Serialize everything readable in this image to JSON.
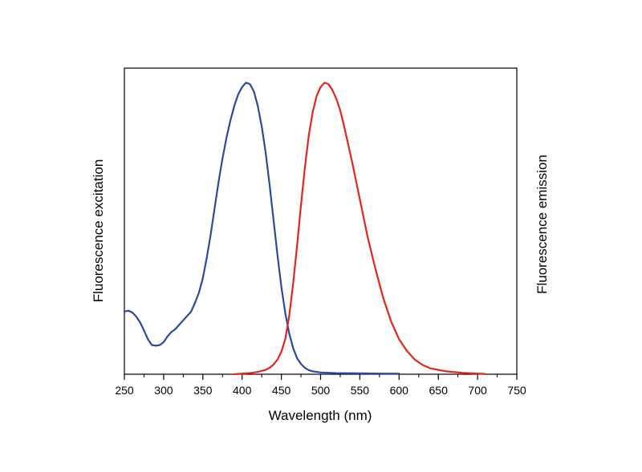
{
  "chart_data": {
    "type": "line",
    "title": "",
    "xlabel": "Wavelength (nm)",
    "ylabel_left": "Fluorescence excitation",
    "ylabel_right": "Fluorescence emission",
    "xlim": [
      250,
      750
    ],
    "ylim": [
      0,
      1.05
    ],
    "x_ticks": [
      250,
      300,
      350,
      400,
      450,
      500,
      550,
      600,
      650,
      700,
      750
    ],
    "x_tick_labels": [
      "250",
      "300",
      "350",
      "400",
      "450",
      "500",
      "550",
      "600",
      "650",
      "700",
      "750"
    ],
    "y_ticks_shown": false,
    "grid": false,
    "legend": "none",
    "series": [
      {
        "role": "excitation",
        "color": "#2b4a9e",
        "points": [
          [
            250,
            0.215
          ],
          [
            255,
            0.218
          ],
          [
            260,
            0.212
          ],
          [
            265,
            0.198
          ],
          [
            270,
            0.178
          ],
          [
            275,
            0.15
          ],
          [
            280,
            0.12
          ],
          [
            285,
            0.1
          ],
          [
            290,
            0.098
          ],
          [
            295,
            0.1
          ],
          [
            300,
            0.11
          ],
          [
            305,
            0.13
          ],
          [
            310,
            0.145
          ],
          [
            315,
            0.155
          ],
          [
            320,
            0.17
          ],
          [
            325,
            0.185
          ],
          [
            330,
            0.2
          ],
          [
            335,
            0.215
          ],
          [
            340,
            0.245
          ],
          [
            345,
            0.28
          ],
          [
            350,
            0.33
          ],
          [
            355,
            0.4
          ],
          [
            360,
            0.48
          ],
          [
            365,
            0.57
          ],
          [
            370,
            0.66
          ],
          [
            375,
            0.74
          ],
          [
            380,
            0.81
          ],
          [
            385,
            0.87
          ],
          [
            390,
            0.92
          ],
          [
            395,
            0.96
          ],
          [
            400,
            0.985
          ],
          [
            405,
            1.0
          ],
          [
            410,
            0.995
          ],
          [
            415,
            0.97
          ],
          [
            420,
            0.92
          ],
          [
            425,
            0.85
          ],
          [
            430,
            0.76
          ],
          [
            435,
            0.65
          ],
          [
            440,
            0.53
          ],
          [
            445,
            0.41
          ],
          [
            450,
            0.3
          ],
          [
            455,
            0.21
          ],
          [
            460,
            0.14
          ],
          [
            465,
            0.09
          ],
          [
            470,
            0.055
          ],
          [
            475,
            0.035
          ],
          [
            480,
            0.022
          ],
          [
            485,
            0.014
          ],
          [
            490,
            0.01
          ],
          [
            500,
            0.006
          ],
          [
            520,
            0.004
          ],
          [
            550,
            0.003
          ],
          [
            580,
            0.002
          ],
          [
            600,
            0.002
          ]
        ]
      },
      {
        "role": "emission",
        "color": "#e0261e",
        "points": [
          [
            390,
            0.0
          ],
          [
            400,
            0.002
          ],
          [
            410,
            0.004
          ],
          [
            420,
            0.008
          ],
          [
            430,
            0.015
          ],
          [
            435,
            0.022
          ],
          [
            440,
            0.033
          ],
          [
            445,
            0.05
          ],
          [
            450,
            0.077
          ],
          [
            455,
            0.12
          ],
          [
            460,
            0.2
          ],
          [
            465,
            0.31
          ],
          [
            470,
            0.44
          ],
          [
            475,
            0.58
          ],
          [
            480,
            0.71
          ],
          [
            485,
            0.82
          ],
          [
            490,
            0.9
          ],
          [
            495,
            0.955
          ],
          [
            500,
            0.985
          ],
          [
            505,
            1.0
          ],
          [
            510,
            0.995
          ],
          [
            515,
            0.975
          ],
          [
            520,
            0.945
          ],
          [
            525,
            0.905
          ],
          [
            530,
            0.85
          ],
          [
            540,
            0.73
          ],
          [
            550,
            0.6
          ],
          [
            560,
            0.47
          ],
          [
            570,
            0.36
          ],
          [
            580,
            0.26
          ],
          [
            590,
            0.18
          ],
          [
            600,
            0.12
          ],
          [
            610,
            0.08
          ],
          [
            620,
            0.05
          ],
          [
            630,
            0.032
          ],
          [
            640,
            0.02
          ],
          [
            660,
            0.01
          ],
          [
            680,
            0.005
          ],
          [
            700,
            0.002
          ],
          [
            710,
            0.001
          ]
        ]
      }
    ]
  }
}
